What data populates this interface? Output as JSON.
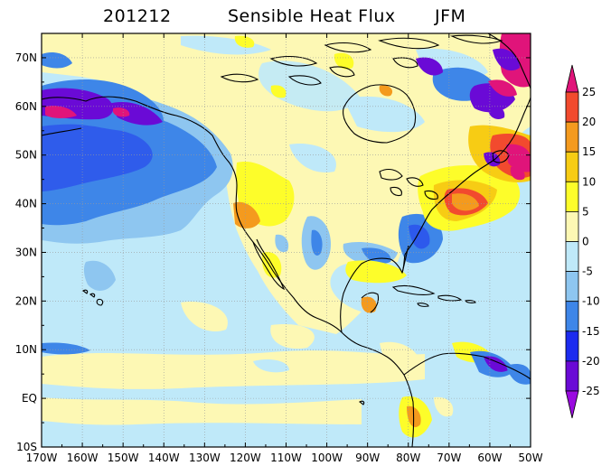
{
  "title": {
    "period": "201212",
    "variable": "Sensible Heat Flux",
    "season": "JFM"
  },
  "map": {
    "lon_range": [
      -170,
      -50
    ],
    "lat_range": [
      -10,
      75
    ],
    "lon_labels": [
      "170W",
      "160W",
      "150W",
      "140W",
      "130W",
      "120W",
      "110W",
      "100W",
      "90W",
      "80W",
      "70W",
      "60W",
      "50W"
    ],
    "lat_labels": [
      "70N",
      "60N",
      "50N",
      "40N",
      "30N",
      "20N",
      "10N",
      "EQ",
      "10S"
    ],
    "lon_ticks": [
      -170,
      -160,
      -150,
      -140,
      -130,
      -120,
      -110,
      -100,
      -90,
      -80,
      -70,
      -60,
      -50
    ],
    "lat_ticks": [
      70,
      60,
      50,
      40,
      30,
      20,
      10,
      0,
      -10
    ]
  },
  "colorbar": {
    "labels": [
      "25",
      "20",
      "15",
      "10",
      "5",
      "0",
      "-5",
      "-10",
      "-15",
      "-20",
      "-25"
    ],
    "levels": [
      25,
      20,
      15,
      10,
      5,
      0,
      -5,
      -10,
      -15,
      -20,
      -25
    ],
    "colors": [
      "#e0147a",
      "#f24a2e",
      "#f49a1e",
      "#f7cc14",
      "#fdfd2a",
      "#fdf8b4",
      "#bfe9f9",
      "#8ec6f0",
      "#3e86e8",
      "#1c2bef",
      "#6a0ad6",
      "#9a0ae0"
    ]
  },
  "palette": {
    "land_neutral": "#fdf8b4",
    "ocean_light": "#bfe9f9",
    "coast": "#000000"
  }
}
